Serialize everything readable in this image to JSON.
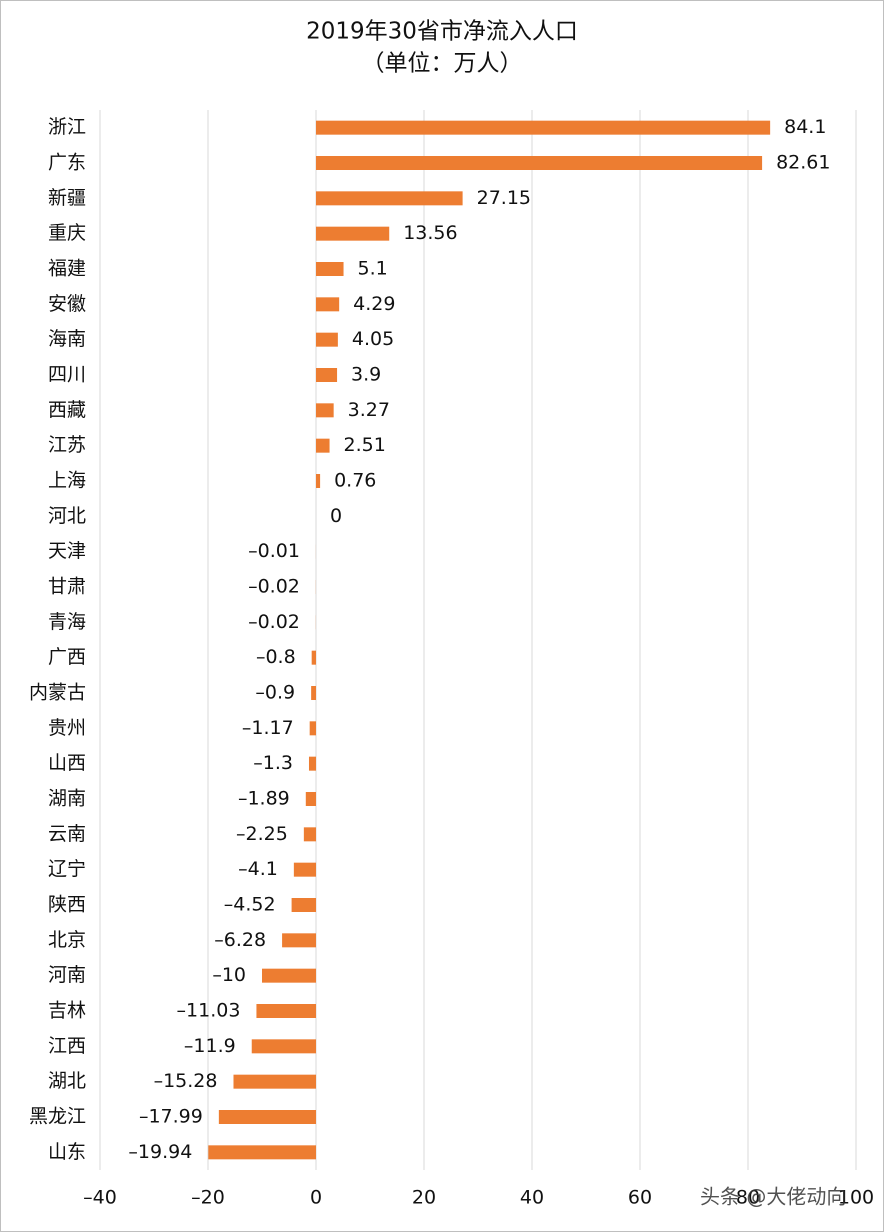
{
  "chart_data": {
    "type": "barh",
    "title": "2019年30省市净流入人口",
    "subtitle": "（单位：万人）",
    "categories": [
      "浙江",
      "广东",
      "新疆",
      "重庆",
      "福建",
      "安徽",
      "海南",
      "四川",
      "西藏",
      "江苏",
      "上海",
      "河北",
      "天津",
      "甘肃",
      "青海",
      "广西",
      "内蒙古",
      "贵州",
      "山西",
      "湖南",
      "云南",
      "辽宁",
      "陕西",
      "北京",
      "河南",
      "吉林",
      "江西",
      "湖北",
      "黑龙江",
      "山东"
    ],
    "values": [
      84.1,
      82.61,
      27.15,
      13.56,
      5.1,
      4.29,
      4.05,
      3.9,
      3.27,
      2.51,
      0.76,
      0,
      -0.01,
      -0.02,
      -0.02,
      -0.8,
      -0.9,
      -1.17,
      -1.3,
      -1.89,
      -2.25,
      -4.1,
      -4.52,
      -6.28,
      -10,
      -11.03,
      -11.9,
      -15.28,
      -17.99,
      -19.94
    ],
    "value_labels": [
      "84.1",
      "82.61",
      "27.15",
      "13.56",
      "5.1",
      "4.29",
      "4.05",
      "3.9",
      "3.27",
      "2.51",
      "0.76",
      "0",
      "–0.01",
      "–0.02",
      "–0.02",
      "–0.8",
      "–0.9",
      "–1.17",
      "–1.3",
      "–1.89",
      "–2.25",
      "–4.1",
      "–4.52",
      "–6.28",
      "–10",
      "–11.03",
      "–11.9",
      "–15.28",
      "–17.99",
      "–19.94"
    ],
    "color": "#ed7d31",
    "xlim": [
      -40,
      100
    ],
    "xticks": [
      {
        "value": -40,
        "label": "–40"
      },
      {
        "value": -20,
        "label": "–20"
      },
      0,
      20,
      40,
      60,
      80,
      100
    ],
    "grid": true,
    "watermark": "头条 @大佬动向"
  }
}
